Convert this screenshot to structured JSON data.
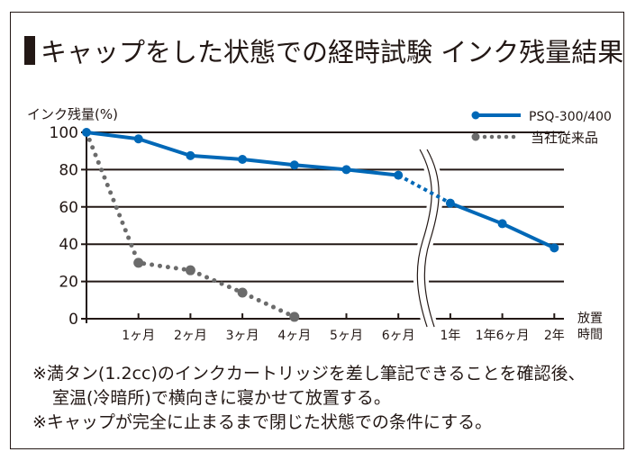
{
  "chart_data": {
    "type": "line",
    "title": "キャップをした状態での経時試験 インク残量結果",
    "ylabel": "インク残量(%)",
    "xlabel": "放置時間",
    "xlabel_lines": [
      "放置",
      "時間"
    ],
    "ylim": [
      0,
      100
    ],
    "yticks": [
      0,
      20,
      40,
      60,
      80,
      100
    ],
    "grid": true,
    "legend_position": "top-right",
    "categories": [
      "0",
      "1ヶ月",
      "2ヶ月",
      "3ヶ月",
      "4ヶ月",
      "5ヶ月",
      "6ヶ月",
      "1年",
      "1年6ヶ月",
      "2年"
    ],
    "axis_break_between": [
      "6ヶ月",
      "1年"
    ],
    "series": [
      {
        "name": "PSQ-300/400",
        "color": "#0068b7",
        "style": "solid",
        "values": [
          100,
          96.5,
          87.5,
          85.5,
          82.5,
          80,
          77,
          62,
          51,
          38
        ]
      },
      {
        "name": "当社従来品",
        "color": "#6b6b6b",
        "style": "dotted",
        "values": [
          100,
          30,
          26,
          14,
          1,
          null,
          null,
          null,
          null,
          null
        ]
      }
    ]
  },
  "notes": [
    "※満タン(1.2cc)のインクカートリッジを差し筆記できることを確認後、",
    "室温(冷暗所)で横向きに寝かせて放置する。",
    "※キャップが完全に止まるまで閉じた状態での条件にする。"
  ],
  "colors": {
    "text": "#231815",
    "axis": "#231815"
  }
}
